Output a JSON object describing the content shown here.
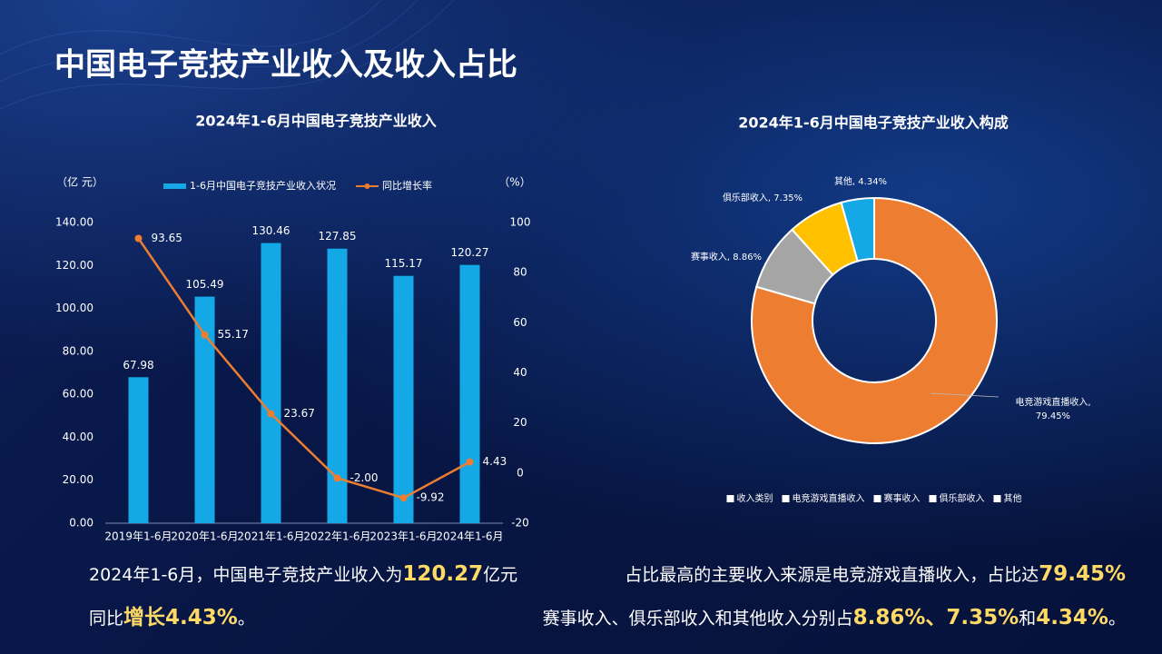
{
  "title": "中国电子竞技产业收入及收入占比",
  "chart_data": [
    {
      "type": "bar",
      "title": "2024年1-6月中国电子竞技产业收入",
      "y_label": "（亿 元）",
      "y2_label": "（%）",
      "categories": [
        "2019年1-6月",
        "2020年1-6月",
        "2021年1-6月",
        "2022年1-6月",
        "2023年1-6月",
        "2024年1-6月"
      ],
      "series": [
        {
          "name": "1-6月中国电子竞技产业收入状况",
          "type": "bar",
          "color": "#14a9e6",
          "values": [
            67.98,
            105.49,
            130.46,
            127.85,
            115.17,
            120.27
          ],
          "value_labels": [
            "67.98",
            "105.49",
            "130.46",
            "127.85",
            "115.17",
            "120.27"
          ]
        },
        {
          "name": "同比增长率",
          "type": "line",
          "axis": "y2",
          "color": "#ed7d31",
          "values": [
            93.65,
            55.17,
            23.67,
            -2.0,
            -9.92,
            4.43
          ],
          "value_labels": [
            "93.65",
            "55.17",
            "23.67",
            "-2.00",
            "-9.92",
            "4.43"
          ]
        }
      ],
      "ylim": [
        0,
        140
      ],
      "yticks": [
        {
          "value": 0,
          "label": "0.00"
        },
        {
          "value": 20,
          "label": "20.00"
        },
        {
          "value": 40,
          "label": "40.00"
        },
        {
          "value": 60,
          "label": "60.00"
        },
        {
          "value": 80,
          "label": "80.00"
        },
        {
          "value": 100,
          "label": "100.00"
        },
        {
          "value": 120,
          "label": "120.00"
        },
        {
          "value": 140,
          "label": "140.00"
        }
      ],
      "y2lim": [
        -20,
        100
      ],
      "y2ticks": [
        -20,
        0,
        20,
        40,
        60,
        80,
        100
      ],
      "legend": "top",
      "grid": false
    },
    {
      "type": "donut",
      "title": "2024年1-6月中国电子竞技产业收入构成",
      "legend_title": "收入类别",
      "categories": [
        "电竞游戏直播收入",
        "赛事收入",
        "俱乐部收入",
        "其他"
      ],
      "values": [
        79.45,
        8.86,
        7.35,
        4.34
      ],
      "value_labels": [
        "电竞游戏直播收入, 79.45%",
        "赛事收入, 8.86%",
        "俱乐部收入, 7.35%",
        "其他, 4.34%"
      ],
      "colors": [
        "#ed7d31",
        "#a5a5a5",
        "#ffc000",
        "#14a9e6"
      ],
      "legend": "bottom"
    }
  ],
  "summary": {
    "left": [
      [
        {
          "text": "2024年1-6月，中国电子竞技产业收入为",
          "strong": false
        },
        {
          "text": "120.27",
          "strong": true
        },
        {
          "text": "亿元",
          "strong": false
        }
      ],
      [
        {
          "text": "同比",
          "strong": false
        },
        {
          "text": "增长4.43%",
          "strong": true
        },
        {
          "text": "。",
          "strong": false
        }
      ]
    ],
    "right": [
      [
        {
          "text": "占比最高的主要收入来源是电竞游戏直播收入，占比达",
          "strong": false
        },
        {
          "text": "79.45%",
          "strong": true
        }
      ],
      [
        {
          "text": "赛事收入、俱乐部收入和其他收入分别占",
          "strong": false
        },
        {
          "text": "8.86%、7.35%",
          "strong": true
        },
        {
          "text": "和",
          "strong": false
        },
        {
          "text": "4.34%",
          "strong": true
        },
        {
          "text": "。",
          "strong": false
        }
      ]
    ]
  }
}
